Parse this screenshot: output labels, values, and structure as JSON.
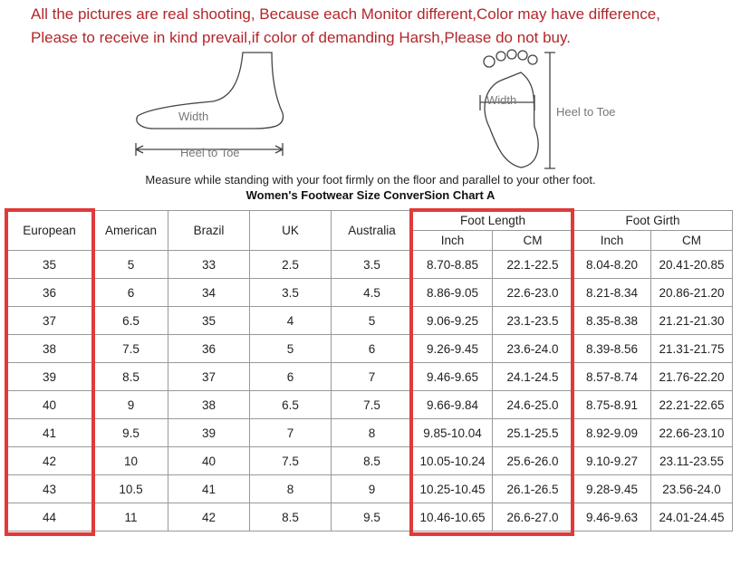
{
  "notice": {
    "line1": "All the pictures are real shooting, Because each Monitor different,Color may have difference,",
    "line2": "Please to receive in kind prevail,if color of demanding Harsh,Please do not buy."
  },
  "illustration": {
    "side_width": "Width",
    "side_heel_to_toe": "Heel to Toe",
    "sole_width": "Width",
    "sole_heel_to_toe": "Heel to Toe"
  },
  "instruction": "Measure while standing with your foot firmly on the floor and parallel to your other foot.",
  "chart_title": "Women's Footwear Size ConverSion Chart A",
  "table": {
    "headers": {
      "european": "European",
      "american": "American",
      "brazil": "Brazil",
      "uk": "UK",
      "australia": "Australia",
      "foot_length": "Foot Length",
      "foot_girth": "Foot Girth",
      "inch": "Inch",
      "cm": "CM"
    },
    "highlight_color": "#e03a3a",
    "rows": [
      [
        "35",
        "5",
        "33",
        "2.5",
        "3.5",
        "8.70-8.85",
        "22.1-22.5",
        "8.04-8.20",
        "20.41-20.85"
      ],
      [
        "36",
        "6",
        "34",
        "3.5",
        "4.5",
        "8.86-9.05",
        "22.6-23.0",
        "8.21-8.34",
        "20.86-21.20"
      ],
      [
        "37",
        "6.5",
        "35",
        "4",
        "5",
        "9.06-9.25",
        "23.1-23.5",
        "8.35-8.38",
        "21.21-21.30"
      ],
      [
        "38",
        "7.5",
        "36",
        "5",
        "6",
        "9.26-9.45",
        "23.6-24.0",
        "8.39-8.56",
        "21.31-21.75"
      ],
      [
        "39",
        "8.5",
        "37",
        "6",
        "7",
        "9.46-9.65",
        "24.1-24.5",
        "8.57-8.74",
        "21.76-22.20"
      ],
      [
        "40",
        "9",
        "38",
        "6.5",
        "7.5",
        "9.66-9.84",
        "24.6-25.0",
        "8.75-8.91",
        "22.21-22.65"
      ],
      [
        "41",
        "9.5",
        "39",
        "7",
        "8",
        "9.85-10.04",
        "25.1-25.5",
        "8.92-9.09",
        "22.66-23.10"
      ],
      [
        "42",
        "10",
        "40",
        "7.5",
        "8.5",
        "10.05-10.24",
        "25.6-26.0",
        "9.10-9.27",
        "23.11-23.55"
      ],
      [
        "43",
        "10.5",
        "41",
        "8",
        "9",
        "10.25-10.45",
        "26.1-26.5",
        "9.28-9.45",
        "23.56-24.0"
      ],
      [
        "44",
        "11",
        "42",
        "8.5",
        "9.5",
        "10.46-10.65",
        "26.6-27.0",
        "9.46-9.63",
        "24.01-24.45"
      ]
    ]
  }
}
